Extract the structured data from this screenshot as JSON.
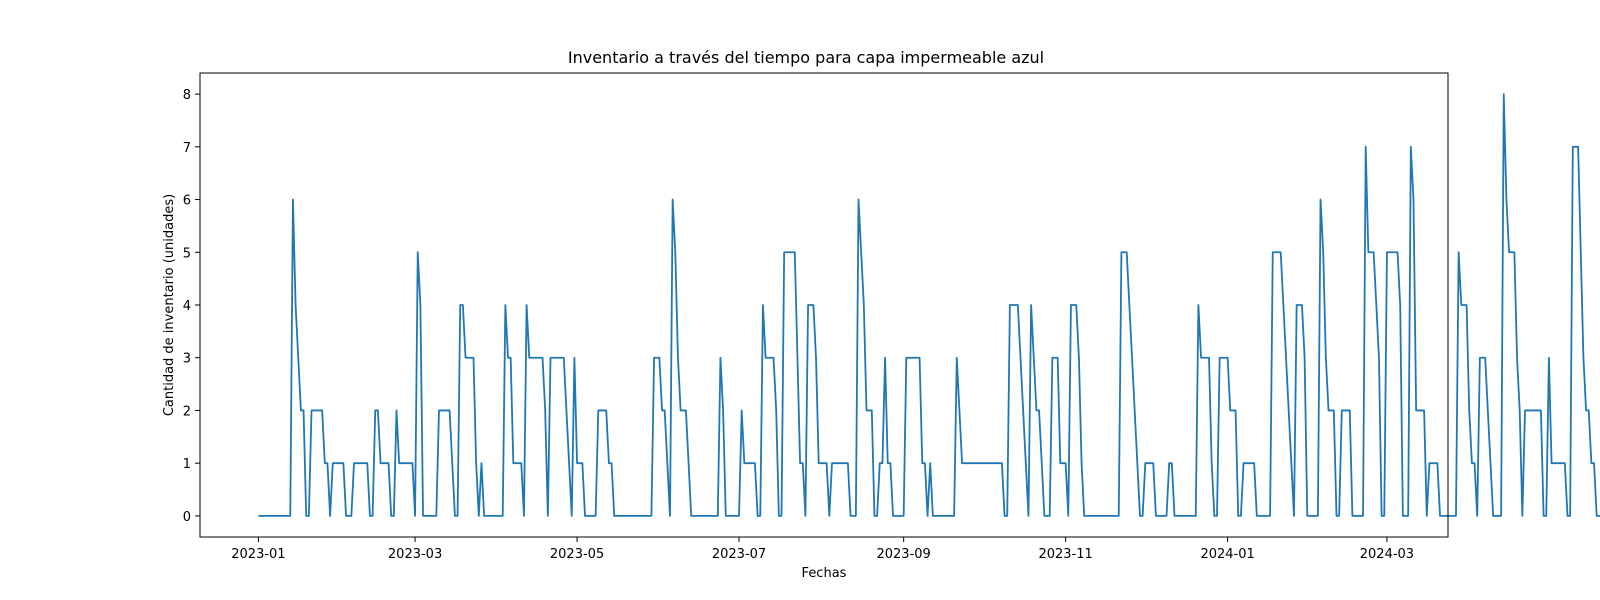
{
  "chart_data": {
    "type": "line",
    "title": "Inventario a través del tiempo para capa impermeable azul",
    "xlabel": "Fechas",
    "ylabel": "Cantidad de inventario (unidades)",
    "x_start": "2023-01-01",
    "x_end": "2024-03-03",
    "xlim": [
      "2022-12-10",
      "2024-03-24"
    ],
    "ylim": [
      -0.4,
      8.4
    ],
    "x_ticks": [
      "2023-01",
      "2023-03",
      "2023-05",
      "2023-07",
      "2023-09",
      "2023-11",
      "2024-01",
      "2024-03"
    ],
    "y_ticks": [
      0,
      1,
      2,
      3,
      4,
      5,
      6,
      7,
      8
    ],
    "grid": false,
    "line_color": "#1f77b4",
    "series": [
      {
        "name": "",
        "values": [
          0,
          0,
          0,
          0,
          0,
          0,
          0,
          0,
          0,
          0,
          0,
          0,
          0,
          6,
          4,
          3,
          2,
          2,
          0,
          0,
          2,
          2,
          2,
          2,
          2,
          1,
          1,
          0,
          1,
          1,
          1,
          1,
          1,
          0,
          0,
          0,
          1,
          1,
          1,
          1,
          1,
          1,
          0,
          0,
          2,
          2,
          1,
          1,
          1,
          1,
          0,
          0,
          2,
          1,
          1,
          1,
          1,
          1,
          1,
          0,
          5,
          4,
          0,
          0,
          0,
          0,
          0,
          0,
          2,
          2,
          2,
          2,
          2,
          1,
          0,
          0,
          4,
          4,
          3,
          3,
          3,
          3,
          1,
          0,
          1,
          0,
          0,
          0,
          0,
          0,
          0,
          0,
          0,
          4,
          3,
          3,
          1,
          1,
          1,
          1,
          0,
          4,
          3,
          3,
          3,
          3,
          3,
          3,
          2,
          0,
          3,
          3,
          3,
          3,
          3,
          3,
          2,
          1,
          0,
          3,
          1,
          1,
          1,
          0,
          0,
          0,
          0,
          0,
          2,
          2,
          2,
          2,
          1,
          1,
          0,
          0,
          0,
          0,
          0,
          0,
          0,
          0,
          0,
          0,
          0,
          0,
          0,
          0,
          0,
          3,
          3,
          3,
          2,
          2,
          1,
          0,
          6,
          5,
          3,
          2,
          2,
          2,
          1,
          0,
          0,
          0,
          0,
          0,
          0,
          0,
          0,
          0,
          0,
          0,
          3,
          2,
          0,
          0,
          0,
          0,
          0,
          0,
          2,
          1,
          1,
          1,
          1,
          1,
          0,
          0,
          4,
          3,
          3,
          3,
          3,
          2,
          0,
          0,
          5,
          5,
          5,
          5,
          5,
          3,
          1,
          1,
          0,
          4,
          4,
          4,
          3,
          1,
          1,
          1,
          1,
          0,
          1,
          1,
          1,
          1,
          1,
          1,
          1,
          0,
          0,
          0,
          6,
          5,
          4,
          2,
          2,
          2,
          0,
          0,
          1,
          1,
          3,
          1,
          1,
          0,
          0,
          0,
          0,
          0,
          3,
          3,
          3,
          3,
          3,
          3,
          1,
          1,
          0,
          1,
          0,
          0,
          0,
          0,
          0,
          0,
          0,
          0,
          0,
          3,
          2,
          1,
          1,
          1,
          1,
          1,
          1,
          1,
          1,
          1,
          1,
          1,
          1,
          1,
          1,
          1,
          1,
          0,
          0,
          4,
          4,
          4,
          4,
          3,
          2,
          1,
          0,
          4,
          3,
          2,
          2,
          1,
          0,
          0,
          0,
          3,
          3,
          3,
          1,
          1,
          1,
          0,
          4,
          4,
          4,
          3,
          1,
          0,
          0,
          0,
          0,
          0,
          0,
          0,
          0,
          0,
          0,
          0,
          0,
          0,
          0,
          5,
          5,
          5,
          4,
          3,
          2,
          1,
          0,
          0,
          1,
          1,
          1,
          1,
          0,
          0,
          0,
          0,
          0,
          1,
          1,
          0,
          0,
          0,
          0,
          0,
          0,
          0,
          0,
          0,
          4,
          3,
          3,
          3,
          3,
          1,
          0,
          0,
          3,
          3,
          3,
          3,
          2,
          2,
          2,
          0,
          0,
          1,
          1,
          1,
          1,
          1,
          0,
          0,
          0,
          0,
          0,
          0,
          5,
          5,
          5,
          5,
          4,
          3,
          2,
          1,
          0,
          4,
          4,
          4,
          3,
          0,
          0,
          0,
          0,
          0,
          6,
          5,
          3,
          2,
          2,
          2,
          0,
          0,
          2,
          2,
          2,
          2,
          0,
          0,
          0,
          0,
          0,
          7,
          5,
          5,
          5,
          4,
          3,
          0,
          0,
          5,
          5,
          5,
          5,
          5,
          4,
          0,
          0,
          0,
          7,
          6,
          2,
          2,
          2,
          2,
          0,
          1,
          1,
          1,
          1,
          0,
          0,
          0,
          0,
          0,
          0,
          0,
          5,
          4,
          4,
          4,
          2,
          1,
          1,
          0,
          3,
          3,
          3,
          2,
          1,
          0,
          0,
          0,
          0,
          8,
          6,
          5,
          5,
          5,
          3,
          2,
          0,
          2,
          2,
          2,
          2,
          2,
          2,
          2,
          0,
          0,
          3,
          1,
          1,
          1,
          1,
          1,
          1,
          0,
          0,
          7,
          7,
          7,
          5,
          3,
          2,
          2,
          1,
          1,
          0,
          0,
          0,
          0,
          0,
          0,
          0,
          0,
          0,
          6,
          4,
          4,
          4,
          3,
          3,
          2,
          0,
          2,
          2,
          2,
          2,
          2,
          2,
          1,
          0,
          0,
          2,
          1,
          0,
          0,
          0,
          0,
          0,
          0
        ]
      }
    ]
  }
}
